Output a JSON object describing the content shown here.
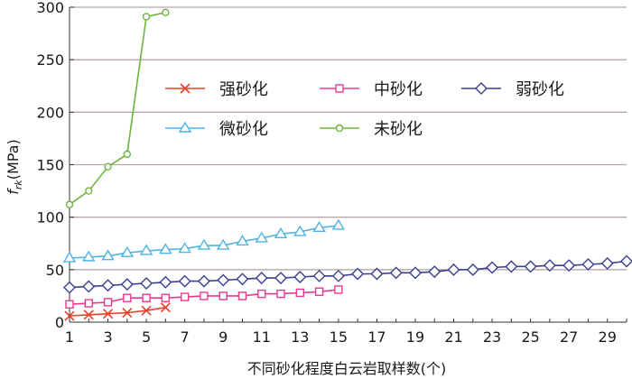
{
  "chart_data": {
    "type": "line",
    "xlabel": "不同砂化程度白云岩取样数(个)",
    "ylabel_main": "f",
    "ylabel_sub": "rk",
    "ylabel_unit": "(MPa)",
    "xlim": [
      1,
      30
    ],
    "ylim": [
      0,
      300
    ],
    "x_ticks": [
      1,
      3,
      5,
      7,
      9,
      11,
      13,
      15,
      17,
      19,
      21,
      23,
      25,
      27,
      29
    ],
    "y_ticks": [
      0,
      50,
      100,
      150,
      200,
      250,
      300
    ],
    "grid": "horizontal",
    "legend_position": "upper-middle",
    "series": [
      {
        "name": "强砂化",
        "color": "#e8402a",
        "marker": "x",
        "x": [
          1,
          2,
          3,
          4,
          5,
          6
        ],
        "values": [
          6,
          7,
          8,
          9,
          11,
          14
        ]
      },
      {
        "name": "中砂化",
        "color": "#e8398f",
        "marker": "square",
        "x": [
          1,
          2,
          3,
          4,
          5,
          6,
          7,
          8,
          9,
          10,
          11,
          12,
          13,
          14,
          15
        ],
        "values": [
          17,
          18,
          19,
          23,
          23,
          23,
          24,
          25,
          25,
          25,
          27,
          27,
          28,
          29,
          31
        ]
      },
      {
        "name": "弱砂化",
        "color": "#3b3f8f",
        "marker": "diamond",
        "x": [
          1,
          2,
          3,
          4,
          5,
          6,
          7,
          8,
          9,
          10,
          11,
          12,
          13,
          14,
          15,
          16,
          17,
          18,
          19,
          20,
          21,
          22,
          23,
          24,
          25,
          26,
          27,
          28,
          29,
          30
        ],
        "values": [
          33,
          34,
          35,
          36,
          37,
          38,
          39,
          39,
          40,
          41,
          42,
          42,
          43,
          44,
          44,
          46,
          46,
          47,
          47,
          48,
          50,
          50,
          52,
          53,
          53,
          54,
          54,
          55,
          56,
          58
        ]
      },
      {
        "name": "微砂化",
        "color": "#4fb3e3",
        "marker": "triangle",
        "x": [
          1,
          2,
          3,
          4,
          5,
          6,
          7,
          8,
          9,
          10,
          11,
          12,
          13,
          14,
          15
        ],
        "values": [
          61,
          62,
          63,
          66,
          68,
          69,
          70,
          73,
          73,
          77,
          80,
          84,
          86,
          90,
          92
        ]
      },
      {
        "name": "未砂化",
        "color": "#6db33f",
        "marker": "circle",
        "x": [
          1,
          2,
          3,
          4,
          5,
          6
        ],
        "values": [
          112,
          125,
          148,
          160,
          291,
          295
        ]
      }
    ]
  }
}
